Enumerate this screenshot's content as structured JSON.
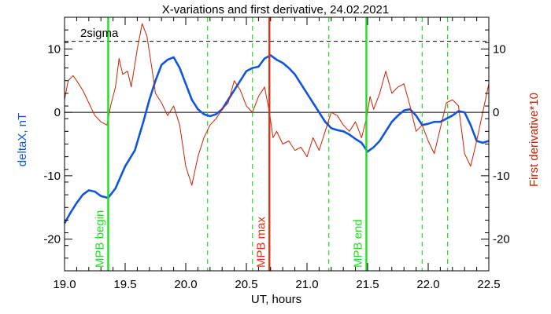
{
  "chart_data": {
    "type": "line",
    "title": "X-variations and first derivative, 24.02.2021",
    "xlabel": "UT, hours",
    "ylabel_left": "deltaX, nT",
    "ylabel_right": "First derivative*10",
    "xlim": [
      19.0,
      22.5
    ],
    "ylim": [
      -25,
      15
    ],
    "x_ticks": [
      "19.0",
      "19.5",
      "20.0",
      "20.5",
      "21.0",
      "21.5",
      "22.0",
      "22.5"
    ],
    "y_ticks": [
      "-20",
      "-10",
      "0",
      "10"
    ],
    "grid": false,
    "threshold": {
      "label": "2sigma",
      "value": 11.2
    },
    "zero_line": 0,
    "markers": [
      {
        "label": "MPB begin",
        "x": 19.36,
        "color": "#22dd22"
      },
      {
        "label": "MPB max",
        "x": 20.69,
        "color": "#dd3311"
      },
      {
        "label": "MPB end",
        "x": 21.49,
        "color": "#22dd22"
      }
    ],
    "dashed_lines": [
      20.18,
      20.55,
      21.18,
      21.95,
      22.16
    ],
    "series": [
      {
        "axis": "left",
        "color": "#1155dd",
        "x": [
          19.0,
          19.05,
          19.1,
          19.15,
          19.2,
          19.25,
          19.3,
          19.36,
          19.42,
          19.5,
          19.58,
          19.65,
          19.7,
          19.75,
          19.8,
          19.85,
          19.9,
          19.95,
          20.0,
          20.05,
          20.1,
          20.15,
          20.2,
          20.25,
          20.3,
          20.35,
          20.4,
          20.45,
          20.5,
          20.55,
          20.6,
          20.65,
          20.7,
          20.75,
          20.8,
          20.85,
          20.9,
          20.95,
          21.0,
          21.05,
          21.1,
          21.15,
          21.2,
          21.25,
          21.3,
          21.35,
          21.4,
          21.45,
          21.5,
          21.55,
          21.6,
          21.65,
          21.7,
          21.75,
          21.8,
          21.85,
          21.9,
          21.95,
          22.0,
          22.05,
          22.1,
          22.15,
          22.2,
          22.25,
          22.3,
          22.35,
          22.4,
          22.45,
          22.5
        ],
        "values": [
          -17.5,
          -15.8,
          -14.3,
          -13.0,
          -12.3,
          -12.5,
          -13.2,
          -13.5,
          -12.0,
          -8.5,
          -6.0,
          -1.5,
          2.0,
          5.0,
          7.5,
          8.3,
          8.7,
          7.0,
          4.5,
          2.0,
          0.5,
          -0.3,
          -0.6,
          -0.3,
          0.5,
          2.0,
          3.5,
          5.0,
          6.5,
          7.0,
          7.2,
          8.5,
          9.0,
          8.3,
          7.8,
          7.0,
          6.0,
          4.5,
          3.0,
          1.5,
          0.0,
          -1.5,
          -2.5,
          -2.8,
          -3.0,
          -3.5,
          -4.2,
          -4.8,
          -6.2,
          -5.5,
          -4.5,
          -3.0,
          -1.5,
          -0.5,
          0.3,
          0.5,
          -0.5,
          -2.0,
          -1.8,
          -1.5,
          -1.5,
          -1.0,
          -0.5,
          0.2,
          0.0,
          -2.0,
          -4.5,
          -4.8,
          -4.5
        ]
      },
      {
        "axis": "right",
        "color": "#cc2200",
        "x": [
          19.0,
          19.03,
          19.07,
          19.1,
          19.15,
          19.2,
          19.25,
          19.3,
          19.35,
          19.38,
          19.42,
          19.45,
          19.48,
          19.52,
          19.55,
          19.6,
          19.64,
          19.68,
          19.72,
          19.75,
          19.8,
          19.85,
          19.9,
          19.95,
          20.0,
          20.05,
          20.1,
          20.15,
          20.2,
          20.25,
          20.3,
          20.35,
          20.4,
          20.45,
          20.5,
          20.55,
          20.6,
          20.65,
          20.69,
          20.72,
          20.75,
          20.8,
          20.85,
          20.9,
          20.95,
          21.0,
          21.05,
          21.1,
          21.15,
          21.2,
          21.25,
          21.3,
          21.35,
          21.4,
          21.45,
          21.49,
          21.52,
          21.55,
          21.6,
          21.65,
          21.7,
          21.75,
          21.8,
          21.85,
          21.9,
          21.95,
          22.0,
          22.05,
          22.1,
          22.15,
          22.2,
          22.25,
          22.3,
          22.35,
          22.4,
          22.45,
          22.5
        ],
        "values": [
          2.0,
          5.0,
          5.8,
          5.0,
          3.5,
          1.5,
          -0.5,
          -1.5,
          -2.0,
          1.0,
          4.0,
          8.5,
          6.0,
          6.5,
          4.0,
          10.0,
          14.0,
          12.0,
          7.0,
          3.0,
          1.5,
          -0.5,
          1.0,
          -2.0,
          -8.5,
          -11.5,
          -7.0,
          -4.0,
          -2.0,
          -1.0,
          0.5,
          1.5,
          5.0,
          3.5,
          1.0,
          0.0,
          2.5,
          4.0,
          0.0,
          -4.0,
          -3.0,
          -5.0,
          -4.5,
          -6.0,
          -5.5,
          -7.0,
          -4.0,
          -6.0,
          -3.0,
          0.0,
          -0.5,
          -2.0,
          -3.0,
          -1.5,
          -4.0,
          -1.0,
          2.5,
          0.5,
          3.0,
          6.5,
          3.0,
          4.0,
          4.5,
          1.0,
          -3.0,
          -2.0,
          -4.5,
          -6.5,
          -2.5,
          1.5,
          2.0,
          1.0,
          -6.5,
          -8.5,
          -4.5,
          0.0,
          4.5
        ]
      }
    ]
  }
}
